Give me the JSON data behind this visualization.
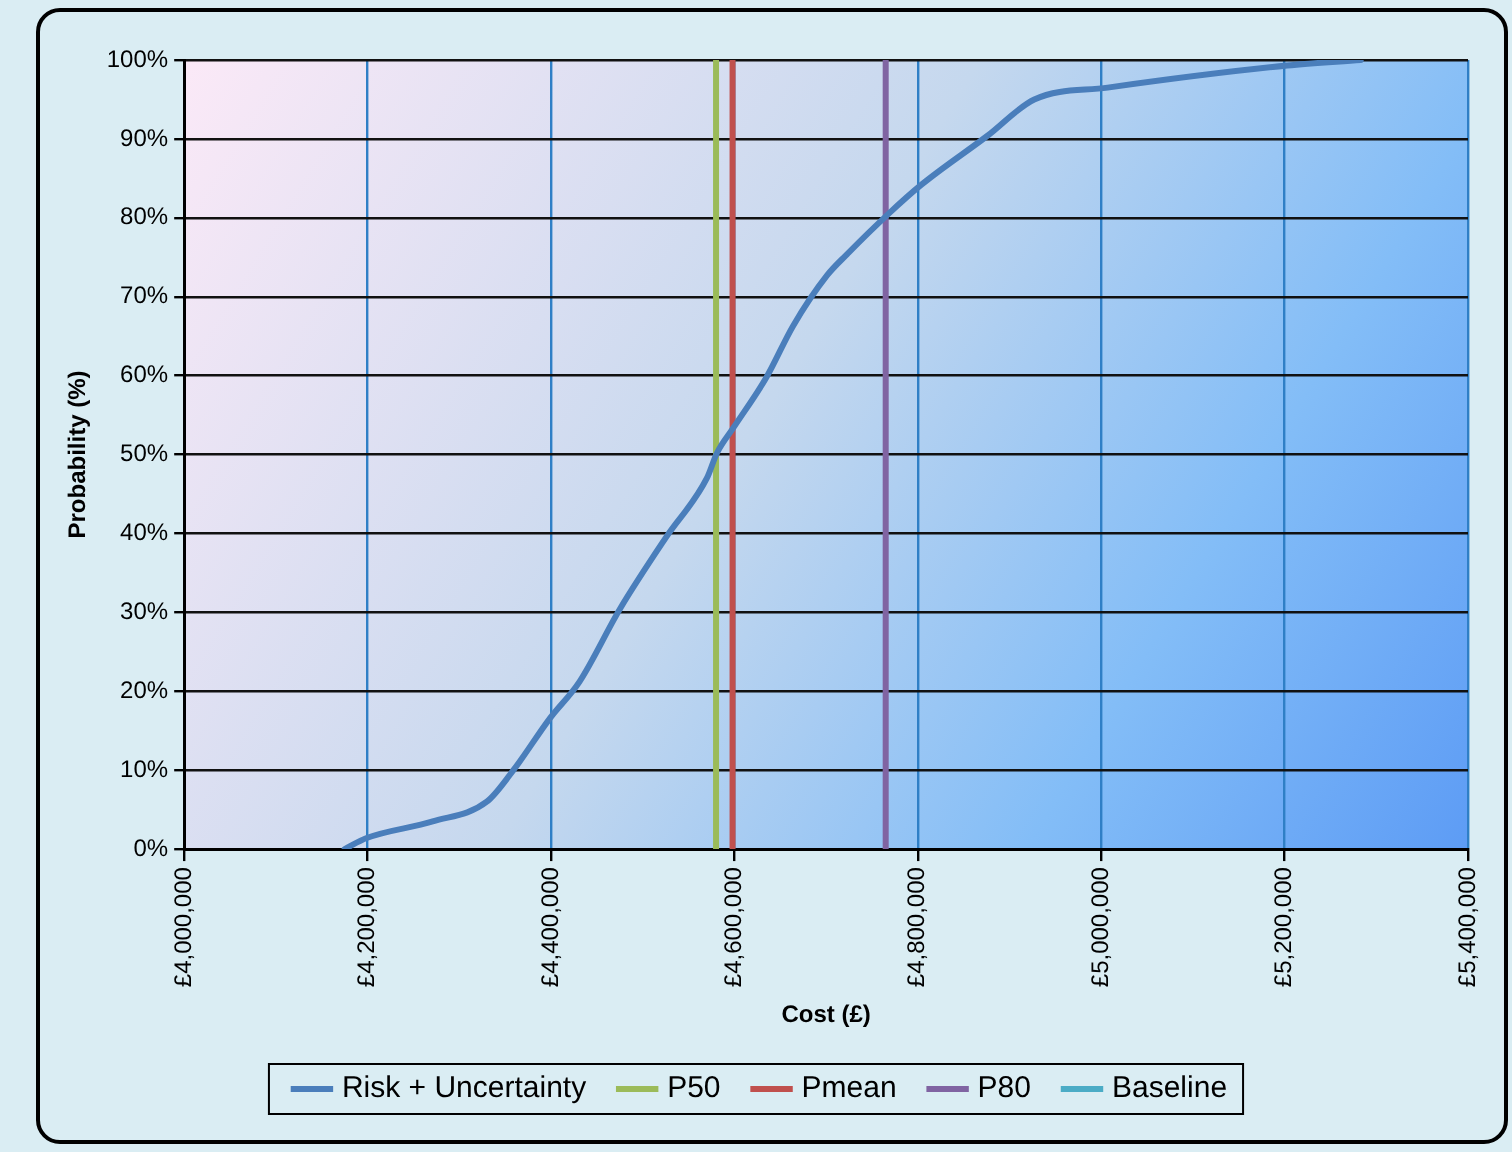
{
  "chart_data": {
    "type": "line",
    "xlabel": "Cost (£)",
    "ylabel": "Probability (%)",
    "xlim": [
      4000000,
      5400000
    ],
    "xticks": [
      {
        "value": 4000000,
        "label": "£4,000,000"
      },
      {
        "value": 4200000,
        "label": "£4,200,000"
      },
      {
        "value": 4400000,
        "label": "£4,400,000"
      },
      {
        "value": 4600000,
        "label": "£4,600,000"
      },
      {
        "value": 4800000,
        "label": "£4,800,000"
      },
      {
        "value": 5000000,
        "label": "£5,000,000"
      },
      {
        "value": 5200000,
        "label": "£5,200,000"
      },
      {
        "value": 5400000,
        "label": "£5,400,000"
      }
    ],
    "ylim": [
      0,
      100
    ],
    "yticks": [
      {
        "value": 0,
        "label": "0%"
      },
      {
        "value": 10,
        "label": "10%"
      },
      {
        "value": 20,
        "label": "20%"
      },
      {
        "value": 30,
        "label": "30%"
      },
      {
        "value": 40,
        "label": "40%"
      },
      {
        "value": 50,
        "label": "50%"
      },
      {
        "value": 60,
        "label": "60%"
      },
      {
        "value": 70,
        "label": "70%"
      },
      {
        "value": 80,
        "label": "80%"
      },
      {
        "value": 90,
        "label": "90%"
      },
      {
        "value": 100,
        "label": "100%"
      }
    ],
    "series": [
      {
        "name": "Risk + Uncertainty",
        "color": "#4a7ebb",
        "x": [
          4175000,
          4199000,
          4271000,
          4330000,
          4359000,
          4399000,
          4431000,
          4475000,
          4526000,
          4570000,
          4581000,
          4599000,
          4635000,
          4664000,
          4701000,
          4723000,
          4768000,
          4804000,
          4876000,
          4927000,
          5007000,
          5203000,
          5283000
        ],
        "values": [
          0,
          1.4,
          3.5,
          6,
          10,
          16.6,
          21.2,
          30.4,
          39.6,
          47,
          50.2,
          53.4,
          59.8,
          66.3,
          72.7,
          75.4,
          80.5,
          84.2,
          90.4,
          95,
          96.5,
          99.3,
          100
        ]
      },
      {
        "name": "P50",
        "color": "#9bbb59",
        "x": [
          4580000,
          4580000
        ],
        "values": [
          0,
          100
        ]
      },
      {
        "name": "Pmean",
        "color": "#c0504d",
        "x": [
          4598000,
          4598000
        ],
        "values": [
          0,
          100
        ]
      },
      {
        "name": "P80",
        "color": "#8064a2",
        "x": [
          4765000,
          4765000
        ],
        "values": [
          0,
          100
        ]
      },
      {
        "name": "Baseline",
        "color": "#4bacc6"
      }
    ],
    "grid": true,
    "legend": "bottom",
    "marker": "none",
    "line_style": "solid"
  }
}
